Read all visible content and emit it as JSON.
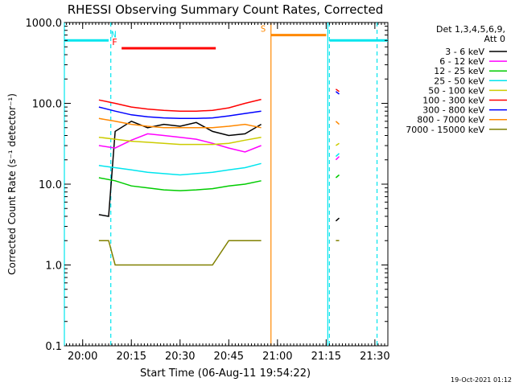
{
  "title": "RHESSI Observing Summary Count Rates, Corrected",
  "footer_date": "19-Oct-2021 01:12",
  "legend": {
    "heading_line1": "Det 1,3,4,5,6,9,",
    "heading_line2": "Att 0",
    "entries": [
      {
        "label": "3 - 6 keV",
        "color": "#000000"
      },
      {
        "label": "6 - 12 keV",
        "color": "#ff00ff"
      },
      {
        "label": "12 - 25 keV",
        "color": "#00cc00"
      },
      {
        "label": "25 - 50 keV",
        "color": "#00e5ee"
      },
      {
        "label": "50 - 100 keV",
        "color": "#cccc00"
      },
      {
        "label": "100 - 300 keV",
        "color": "#ff0000"
      },
      {
        "label": "300 - 800 keV",
        "color": "#0000ff"
      },
      {
        "label": "800 - 7000 keV",
        "color": "#ff8800"
      },
      {
        "label": "7000 - 15000 keV",
        "color": "#808000"
      }
    ]
  },
  "chart_data": {
    "type": "line",
    "title": "RHESSI Observing Summary Count Rates, Corrected",
    "xlabel": "Start Time (06-Aug-11 19:54:22)",
    "ylabel": "Corrected Count Rate (s⁻¹ detector⁻¹)",
    "y_scale": "log",
    "ylim": [
      0.1,
      1000
    ],
    "xlim": [
      "19:54:22",
      "21:34:00"
    ],
    "x_ticks": [
      "20:00",
      "20:15",
      "20:30",
      "20:45",
      "21:00",
      "21:15",
      "21:30"
    ],
    "y_ticks": [
      "0.1",
      "1.0",
      "10.0",
      "100.0",
      "1000.0"
    ],
    "flags": [
      {
        "label": "N",
        "color": "#00e5ee",
        "segments": [
          [
            "19:54:22",
            "20:08:00"
          ],
          [
            "21:16:00",
            "21:34:00"
          ]
        ],
        "value": 600
      },
      {
        "label": "F",
        "color": "#ff0000",
        "segments": [
          [
            "20:12:00",
            "20:41:00"
          ]
        ],
        "value": 480
      },
      {
        "label": "S",
        "color": "#ff8800",
        "segments": [
          [
            "20:58:00",
            "21:15:00"
          ]
        ],
        "value": 700
      }
    ],
    "lines": [
      {
        "time": "19:54:22",
        "color": "#00e5ee",
        "style": "solid"
      },
      {
        "time": "20:08:40",
        "color": "#00e5ee",
        "style": "dashed"
      },
      {
        "time": "20:58:00",
        "color": "#ff8800",
        "style": "solid"
      },
      {
        "time": "21:15:30",
        "color": "#00e5ee",
        "style": "solid"
      },
      {
        "time": "21:16:00",
        "color": "#00e5ee",
        "style": "dashed"
      },
      {
        "time": "21:30:40",
        "color": "#00e5ee",
        "style": "dashed"
      }
    ],
    "series": [
      {
        "name": "3 - 6 keV",
        "color": "#000000",
        "x": [
          "20:05",
          "20:08",
          "20:10",
          "20:15",
          "20:20",
          "20:25",
          "20:30",
          "20:35",
          "20:40",
          "20:45",
          "20:50",
          "20:55",
          "21:18",
          "21:19"
        ],
        "y": [
          4.2,
          4.0,
          45,
          60,
          50,
          55,
          52,
          58,
          45,
          40,
          42,
          55,
          3.5,
          3.8
        ]
      },
      {
        "name": "6 - 12 keV",
        "color": "#ff00ff",
        "x": [
          "20:05",
          "20:10",
          "20:15",
          "20:20",
          "20:25",
          "20:30",
          "20:35",
          "20:40",
          "20:45",
          "20:50",
          "20:55",
          "21:18",
          "21:19"
        ],
        "y": [
          30,
          28,
          35,
          42,
          40,
          38,
          36,
          32,
          28,
          25,
          30,
          20,
          22
        ]
      },
      {
        "name": "12 - 25 keV",
        "color": "#00cc00",
        "x": [
          "20:05",
          "20:10",
          "20:15",
          "20:20",
          "20:25",
          "20:30",
          "20:35",
          "20:40",
          "20:45",
          "20:50",
          "20:55",
          "21:18",
          "21:19"
        ],
        "y": [
          12,
          11,
          9.5,
          9.0,
          8.5,
          8.3,
          8.5,
          8.8,
          9.5,
          10,
          11,
          12,
          13
        ]
      },
      {
        "name": "25 - 50 keV",
        "color": "#00e5ee",
        "x": [
          "20:05",
          "20:10",
          "20:15",
          "20:20",
          "20:25",
          "20:30",
          "20:35",
          "20:40",
          "20:45",
          "20:50",
          "20:55",
          "21:18",
          "21:19"
        ],
        "y": [
          17,
          16,
          15,
          14,
          13.5,
          13,
          13.5,
          14,
          15,
          16,
          18,
          22,
          24
        ]
      },
      {
        "name": "50 - 100 keV",
        "color": "#cccc00",
        "x": [
          "20:05",
          "20:10",
          "20:15",
          "20:20",
          "20:25",
          "20:30",
          "20:35",
          "20:40",
          "20:45",
          "20:50",
          "20:55",
          "21:18",
          "21:19"
        ],
        "y": [
          38,
          36,
          34,
          33,
          32,
          31,
          31,
          31,
          32,
          35,
          38,
          30,
          32
        ]
      },
      {
        "name": "100 - 300 keV",
        "color": "#ff0000",
        "x": [
          "20:05",
          "20:10",
          "20:15",
          "20:20",
          "20:25",
          "20:30",
          "20:35",
          "20:40",
          "20:45",
          "20:50",
          "20:55",
          "21:18",
          "21:19"
        ],
        "y": [
          110,
          100,
          90,
          85,
          82,
          80,
          80,
          82,
          88,
          100,
          112,
          150,
          140
        ]
      },
      {
        "name": "300 - 800 keV",
        "color": "#0000ff",
        "x": [
          "20:05",
          "20:10",
          "20:15",
          "20:20",
          "20:25",
          "20:30",
          "20:35",
          "20:40",
          "20:45",
          "20:50",
          "20:55",
          "21:18",
          "21:19"
        ],
        "y": [
          90,
          80,
          72,
          68,
          66,
          65,
          65,
          66,
          70,
          75,
          80,
          140,
          130
        ]
      },
      {
        "name": "800 - 7000 keV",
        "color": "#ff8800",
        "x": [
          "20:05",
          "20:10",
          "20:15",
          "20:20",
          "20:25",
          "20:30",
          "20:35",
          "20:40",
          "20:45",
          "20:50",
          "20:55",
          "21:18",
          "21:19"
        ],
        "y": [
          65,
          60,
          55,
          52,
          50,
          50,
          50,
          50,
          52,
          55,
          50,
          60,
          55
        ]
      },
      {
        "name": "7000 - 15000 keV",
        "color": "#808000",
        "x": [
          "20:05",
          "20:08",
          "20:10",
          "20:15",
          "20:20",
          "20:25",
          "20:30",
          "20:35",
          "20:40",
          "20:45",
          "20:50",
          "20:55",
          "21:18",
          "21:19"
        ],
        "y": [
          2.0,
          2.0,
          1.0,
          1.0,
          1.0,
          1.0,
          1.0,
          1.0,
          1.0,
          2.0,
          2.0,
          2.0,
          2.0,
          2.0
        ]
      }
    ]
  }
}
